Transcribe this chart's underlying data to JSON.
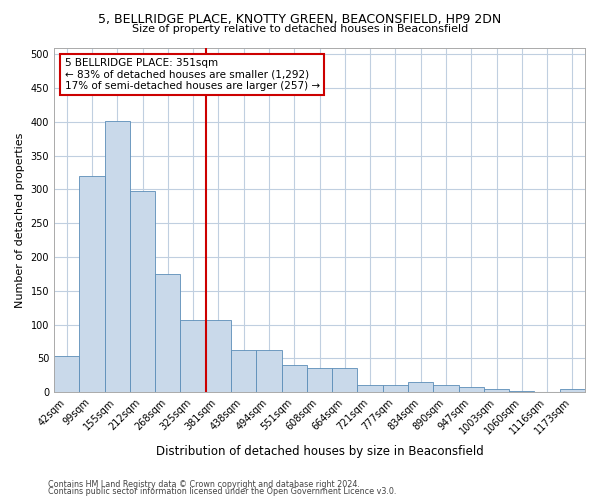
{
  "title_line1": "5, BELLRIDGE PLACE, KNOTTY GREEN, BEACONSFIELD, HP9 2DN",
  "title_line2": "Size of property relative to detached houses in Beaconsfield",
  "xlabel": "Distribution of detached houses by size in Beaconsfield",
  "ylabel": "Number of detached properties",
  "categories": [
    "42sqm",
    "99sqm",
    "155sqm",
    "212sqm",
    "268sqm",
    "325sqm",
    "381sqm",
    "438sqm",
    "494sqm",
    "551sqm",
    "608sqm",
    "664sqm",
    "721sqm",
    "777sqm",
    "834sqm",
    "890sqm",
    "947sqm",
    "1003sqm",
    "1060sqm",
    "1116sqm",
    "1173sqm"
  ],
  "values": [
    53,
    320,
    401,
    297,
    175,
    107,
    107,
    63,
    63,
    40,
    35,
    35,
    10,
    10,
    15,
    10,
    7,
    4,
    2,
    0,
    5
  ],
  "bar_color": "#c9d9ea",
  "bar_edge_color": "#5b8db8",
  "vline_color": "#cc0000",
  "vline_x": 5.5,
  "annotation_text": "5 BELLRIDGE PLACE: 351sqm\n← 83% of detached houses are smaller (1,292)\n17% of semi-detached houses are larger (257) →",
  "annotation_box_color": "#ffffff",
  "annotation_box_edge": "#cc0000",
  "ylim": [
    0,
    510
  ],
  "yticks": [
    0,
    50,
    100,
    150,
    200,
    250,
    300,
    350,
    400,
    450,
    500
  ],
  "footer_line1": "Contains HM Land Registry data © Crown copyright and database right 2024.",
  "footer_line2": "Contains public sector information licensed under the Open Government Licence v3.0.",
  "bg_color": "#ffffff",
  "grid_color": "#c0cfe0",
  "title1_fontsize": 9.0,
  "title2_fontsize": 8.0,
  "ylabel_fontsize": 8.0,
  "xlabel_fontsize": 8.5,
  "tick_fontsize": 7.0,
  "annot_fontsize": 7.5,
  "footer_fontsize": 5.8
}
